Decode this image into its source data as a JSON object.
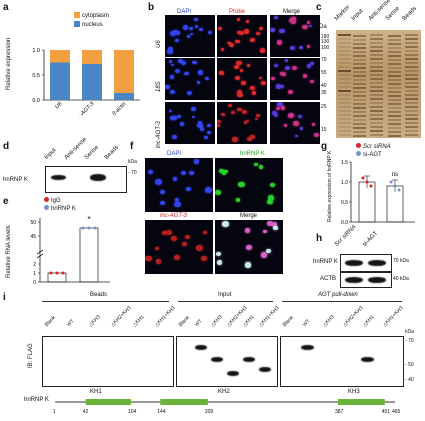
{
  "colors": {
    "nucleus": "#4a86c6",
    "cytoplasm": "#f2a042",
    "blue": "#2a3ec8",
    "red": "#d62626",
    "green": "#1e9e1e",
    "igg": "#d62626",
    "hnrnpk": "#7a8fc8"
  },
  "panels": {
    "a": {
      "label": "a",
      "ylabel": "Relative expression",
      "legend": [
        "cytoplasm",
        "nucleus"
      ]
    },
    "b": {
      "label": "b",
      "cols": [
        "DAPI",
        "Probe",
        "Merge"
      ],
      "rows": [
        "U6",
        "18S",
        "lnc-AGT-3"
      ]
    },
    "c": {
      "label": "c",
      "kda": "kDa",
      "lanes": [
        "Marker",
        "Input",
        "Anti-sense",
        "Sense",
        "Beads"
      ],
      "markers": [
        "180",
        "130",
        "100",
        "70",
        "55",
        "40",
        "35",
        "25",
        "15"
      ]
    },
    "d": {
      "label": "d",
      "protein": "hnRNP K",
      "lanes": [
        "Input",
        "Anti-sense",
        "Sense",
        "Beads"
      ],
      "kda": "kDa",
      "marker": "70"
    },
    "e": {
      "label": "e",
      "ylabel": "Relative RNA levels",
      "legend": [
        "IgG",
        "hnRNP K"
      ],
      "star": "*",
      "yticks": [
        "50",
        "45",
        "2",
        "1",
        "0"
      ]
    },
    "f": {
      "label": "f",
      "titles": [
        "DAPI",
        "hnRNP K",
        "lnc-AGT-3",
        "Merge"
      ]
    },
    "g": {
      "label": "g",
      "ylabel": "Relative expression of hnRNP K",
      "legend": [
        "Scr siRNA",
        "si-AGT"
      ],
      "ns": "ns",
      "yticks": [
        "1.5",
        "1.0",
        "0.5",
        "0.0"
      ]
    },
    "h": {
      "label": "h",
      "lanes": [
        "Scr siRNA",
        "si-AGT"
      ],
      "rows": [
        "hnRNP K",
        "ACTB"
      ],
      "markers": [
        "70 kDa",
        "40 kDa"
      ]
    },
    "i": {
      "label": "i",
      "ylabel": "IB: FLAG",
      "groups": [
        "Beads",
        "Input",
        "AGT pull-down"
      ],
      "lanes": [
        "Blank",
        "WT",
        "△KH3",
        "△KH2+KH3",
        "△KH1",
        "△KH1+KH3"
      ],
      "kda": "kDa",
      "markers": [
        "70",
        "50",
        "40"
      ],
      "domain_label": "hnRNP K",
      "domains": [
        "KH1",
        "KH2",
        "KH3"
      ],
      "positions": [
        "1",
        "42",
        "104",
        "144",
        "209",
        "387",
        "451",
        "465"
      ]
    }
  },
  "chart_data": [
    {
      "type": "bar",
      "panel": "a",
      "categories": [
        "U6",
        "lnc-AGT-3",
        "β-actin"
      ],
      "series": [
        {
          "name": "nucleus",
          "values": [
            0.75,
            0.72,
            0.14
          ]
        },
        {
          "name": "cytoplasm",
          "values": [
            0.25,
            0.28,
            0.86
          ]
        }
      ],
      "ylabel": "Relative expression",
      "yticks": [
        "0.0",
        "0.5",
        "1.0"
      ],
      "ylim": [
        0,
        1
      ]
    },
    {
      "type": "bar",
      "panel": "e",
      "categories": [
        "IgG",
        "hnRNP K"
      ],
      "values": [
        1.0,
        49.0
      ],
      "ylabel": "Relative RNA levels"
    },
    {
      "type": "bar",
      "panel": "g",
      "categories": [
        "Scr siRNA",
        "si-AGT"
      ],
      "values": [
        1.0,
        0.9
      ],
      "ylabel": "Relative expression of hnRNP K",
      "ylim": [
        0,
        1.5
      ]
    }
  ]
}
